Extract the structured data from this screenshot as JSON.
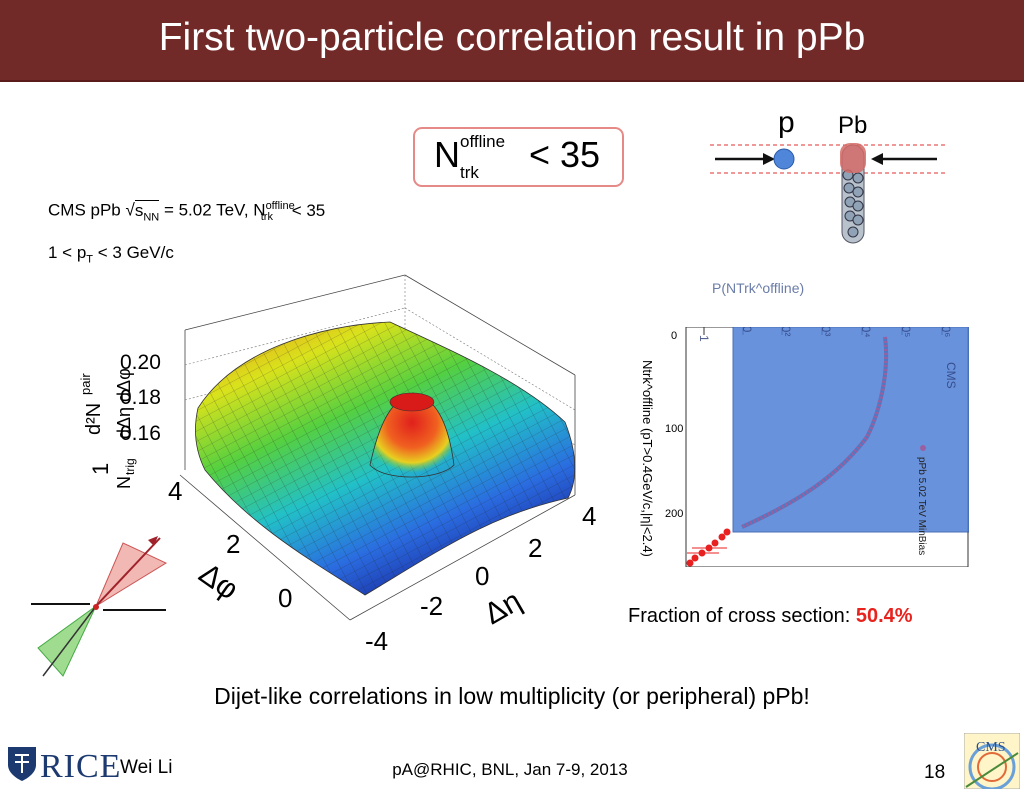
{
  "slide": {
    "title": "First two-particle correlation result in pPb",
    "caption": "Dijet-like correlations in low multiplicity (or peripheral) pPb!",
    "page_number": "18"
  },
  "cut_box": {
    "symbol": "N",
    "superscript": "offline",
    "subscript": "trk",
    "relation": "< 35"
  },
  "collision_diagram": {
    "projectile": "p",
    "target": "Pb",
    "projectile_color": "#4f86d9",
    "target_color": "#d46a66"
  },
  "surface_plot": {
    "cms_label": "CMS pPb √sNN = 5.02 TeV, Ntrk^offline < 35",
    "cms_prefix": "CMS pPb",
    "energy": "= 5.02 TeV, N",
    "offline": "offline",
    "trk": "trk",
    "cut": "< 35",
    "pt_range": "1 < pT < 3 GeV/c",
    "z_axis_label": "1/Ntrig d²Npair/dΔη dΔφ",
    "z_ticks": [
      "0.20",
      "0.18",
      "0.16"
    ],
    "dphi_label": "Δφ",
    "dphi_ticks": [
      "4",
      "2",
      "0"
    ],
    "deta_label": "Δη",
    "deta_ticks": [
      "4",
      "2",
      "0",
      "-2",
      "-4"
    ]
  },
  "multiplicity_plot": {
    "y_axis_label": "Ntrk^offline (pT>0.4GeV/c,|η|<2.4)",
    "top_axis_label": "P(NTrk^offline)",
    "x_ticks": [
      "0",
      "100",
      "200"
    ],
    "log_ticks": [
      "1",
      "10",
      "10²",
      "10³",
      "10⁴",
      "10⁵",
      "10⁶"
    ],
    "experiment": "CMS",
    "legend": "pPb 5.02 TeV MinBias"
  },
  "fraction": {
    "label": "Fraction of cross section: ",
    "value": "50.4%"
  },
  "footer": {
    "institution": "RICE",
    "author": "Wei Li",
    "conference": "pA@RHIC, BNL, Jan 7-9, 2013",
    "experiment_logo": "CMS"
  },
  "colors": {
    "title_bar": "#722a28",
    "highlight": "#e8231e",
    "panel_fill": "#4f7fd6"
  }
}
